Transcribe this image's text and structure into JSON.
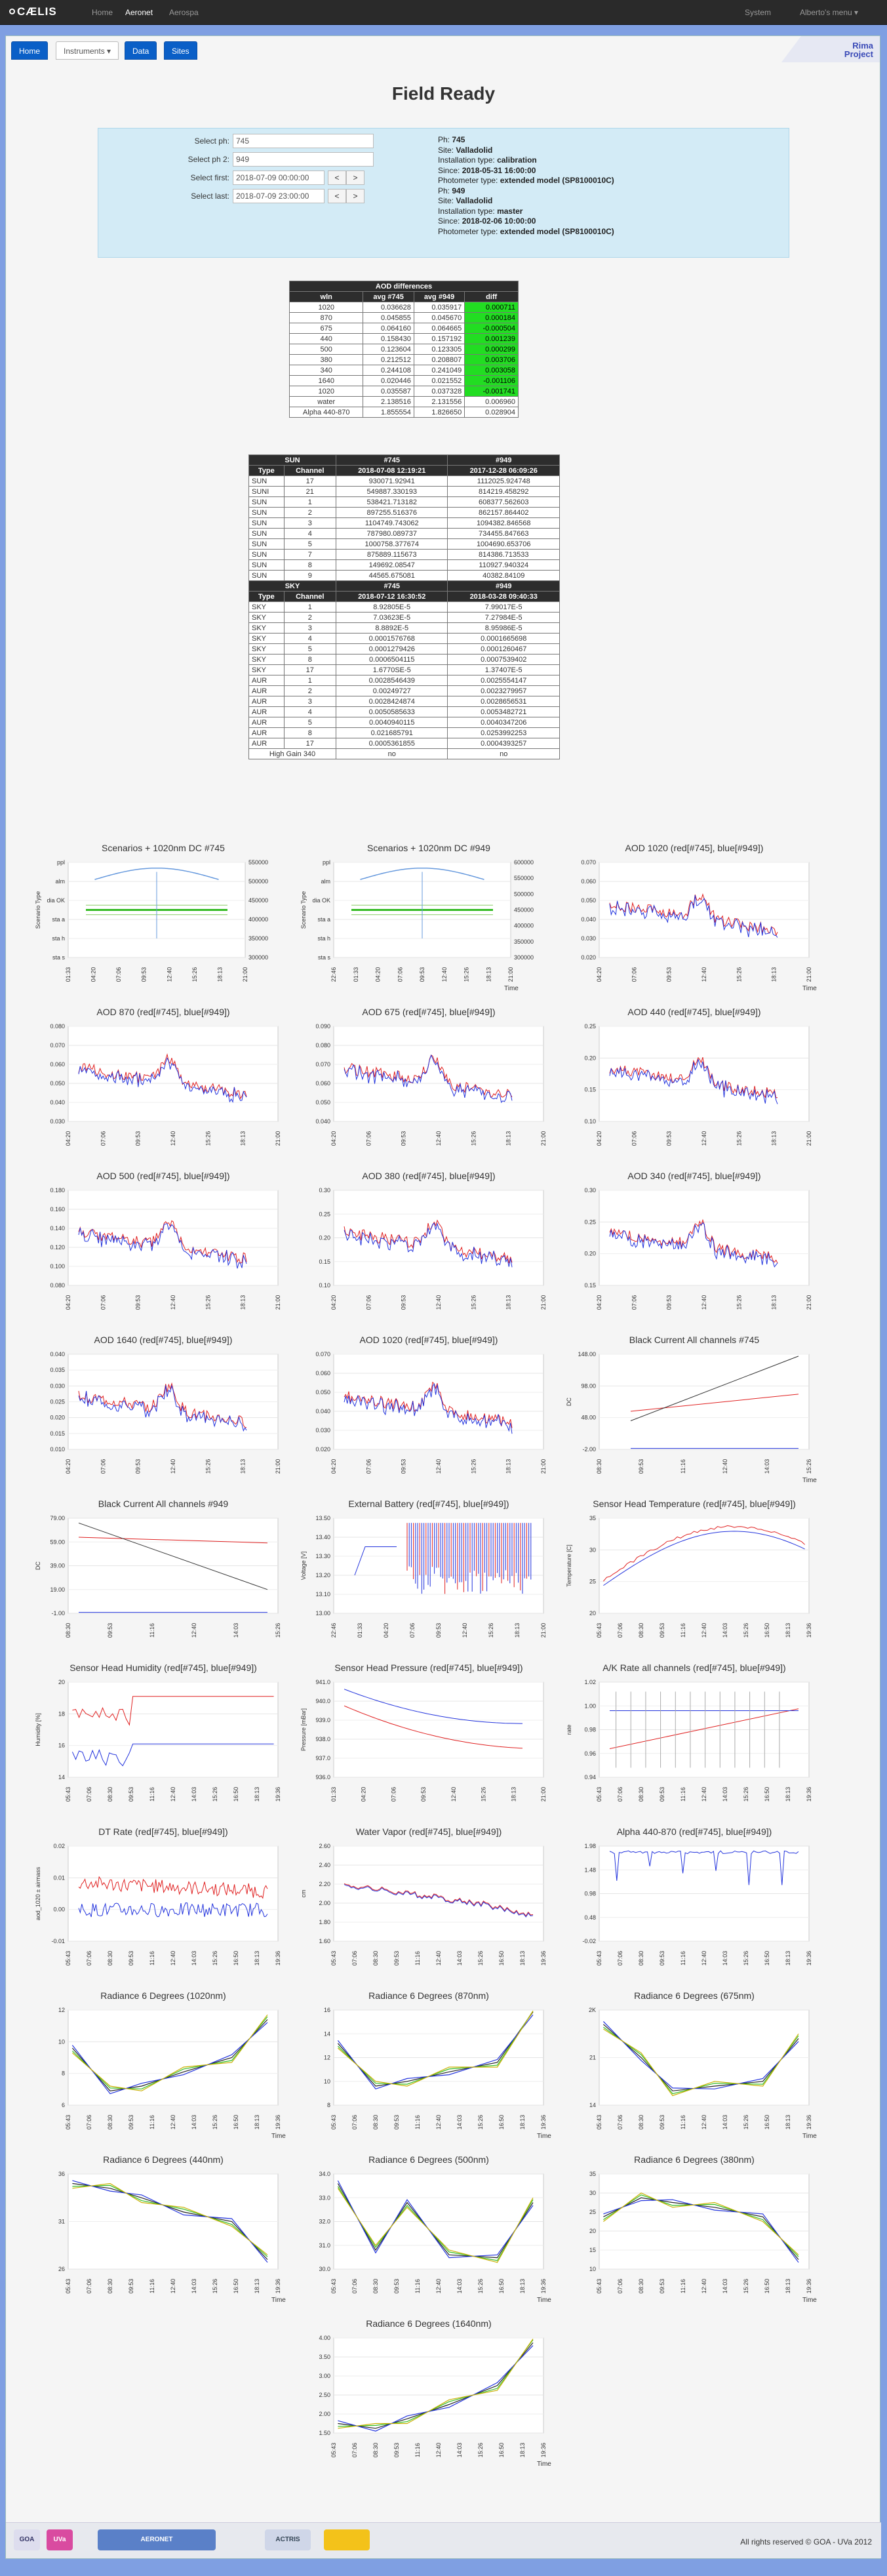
{
  "topbar": {
    "brand": "CÆLIS",
    "links": [
      "Home",
      "Aeronet",
      "Aerospa"
    ],
    "active": "Aeronet",
    "right_links": [
      "System",
      "Alberto's menu"
    ]
  },
  "tabs": [
    {
      "label": "Home",
      "active": true
    },
    {
      "label": "Instruments",
      "active": false
    },
    {
      "label": "Data",
      "active": true
    },
    {
      "label": "Sites",
      "active": true
    }
  ],
  "rima": {
    "line1": "Rima",
    "line2": "Project"
  },
  "page_title": "Field Ready",
  "form": {
    "ph_label": "Select ph:",
    "ph_value": "745",
    "ph2_label": "Select ph 2:",
    "ph2_value": "949",
    "first_label": "Select first:",
    "first_value": "2018-07-09 00:00:00",
    "last_label": "Select last:",
    "last_value": "2018-07-09 23:00:00",
    "prev": "<",
    "next": ">"
  },
  "info": [
    {
      "k": "Ph:",
      "v": "745"
    },
    {
      "k": "Site:",
      "v": "Valladolid"
    },
    {
      "k": "Installation type:",
      "v": "calibration"
    },
    {
      "k": "Since:",
      "v": "2018-05-31 16:00:00"
    },
    {
      "k": "Photometer type:",
      "v": "extended model (SP8100010C)"
    },
    {
      "k": "Ph:",
      "v": "949"
    },
    {
      "k": "Site:",
      "v": "Valladolid"
    },
    {
      "k": "Installation type:",
      "v": "master"
    },
    {
      "k": "Since:",
      "v": "2018-02-06 10:00:00"
    },
    {
      "k": "Photometer type:",
      "v": "extended model (SP8100010C)"
    }
  ],
  "aod": {
    "caption": "AOD differences",
    "headers": [
      "wln",
      "avg #745",
      "avg #949",
      "diff"
    ],
    "rows": [
      [
        "1020",
        "0.036628",
        "0.035917",
        "0.000711"
      ],
      [
        "870",
        "0.045855",
        "0.045670",
        "0.000184"
      ],
      [
        "675",
        "0.064160",
        "0.064665",
        "-0.000504"
      ],
      [
        "440",
        "0.158430",
        "0.157192",
        "0.001239"
      ],
      [
        "500",
        "0.123604",
        "0.123305",
        "0.000299"
      ],
      [
        "380",
        "0.212512",
        "0.208807",
        "0.003706"
      ],
      [
        "340",
        "0.244108",
        "0.241049",
        "0.003058"
      ],
      [
        "1640",
        "0.020446",
        "0.021552",
        "-0.001106"
      ],
      [
        "1020",
        "0.035587",
        "0.037328",
        "-0.001741"
      ],
      [
        "water",
        "2.138516",
        "2.131556",
        "0.006960"
      ],
      [
        "Alpha 440-870",
        "1.855554",
        "1.826650",
        "0.028904"
      ]
    ]
  },
  "sun": {
    "cap": [
      "SUN",
      "#745",
      "#949"
    ],
    "headers": [
      "Type",
      "Channel",
      "2018-07-08 12:19:21",
      "2017-12-28 06:09:26"
    ],
    "rows": [
      [
        "SUN",
        "17",
        "930071.92941",
        "1112025.924748"
      ],
      [
        "SUNI",
        "21",
        "549887.330193",
        "814219.458292"
      ],
      [
        "SUN",
        "1",
        "538421.713182",
        "608377.562603"
      ],
      [
        "SUN",
        "2",
        "897255.516376",
        "862157.864402"
      ],
      [
        "SUN",
        "3",
        "1104749.743062",
        "1094382.846568"
      ],
      [
        "SUN",
        "4",
        "787980.089737",
        "734455.847663"
      ],
      [
        "SUN",
        "5",
        "1000758.377674",
        "1004690.653706"
      ],
      [
        "SUN",
        "7",
        "875889.115673",
        "814386.713533"
      ],
      [
        "SUN",
        "8",
        "149692.08547",
        "110927.940324"
      ],
      [
        "SUN",
        "9",
        "44565.675081",
        "40382.84109"
      ]
    ]
  },
  "sky": {
    "cap": [
      "SKY",
      "#745",
      "#949"
    ],
    "headers": [
      "Type",
      "Channel",
      "2018-07-12 16:30:52",
      "2018-03-28 09:40:33"
    ],
    "rows": [
      [
        "SKY",
        "1",
        "8.92805E-5",
        "7.99017E-5"
      ],
      [
        "SKY",
        "2",
        "7.03623E-5",
        "7.27984E-5"
      ],
      [
        "SKY",
        "3",
        "8.8892E-5",
        "8.95986E-5"
      ],
      [
        "SKY",
        "4",
        "0.0001576768",
        "0.0001665698"
      ],
      [
        "SKY",
        "5",
        "0.0001279426",
        "0.0001260467"
      ],
      [
        "SKY",
        "8",
        "0.0006504115",
        "0.0007539402"
      ],
      [
        "SKY",
        "17",
        "1.6770SE-5",
        "1.37407E-5"
      ],
      [
        "AUR",
        "1",
        "0.0028546439",
        "0.0025554147"
      ],
      [
        "AUR",
        "2",
        "0.00249727",
        "0.0023279957"
      ],
      [
        "AUR",
        "3",
        "0.0028424874",
        "0.0028656531"
      ],
      [
        "AUR",
        "4",
        "0.0050585633",
        "0.0053482721"
      ],
      [
        "AUR",
        "5",
        "0.0040940115",
        "0.0040347206"
      ],
      [
        "AUR",
        "8",
        "0.021685791",
        "0.0253992253"
      ],
      [
        "AUR",
        "17",
        "0.0005361855",
        "0.0004393257"
      ]
    ],
    "high_gain": [
      "High Gain 340",
      "no",
      "no"
    ]
  },
  "charts": [
    {
      "title": "Scenarios + 1020nm DC #745",
      "xt": [
        "01:33",
        "04:20",
        "07:06",
        "09:53",
        "12:40",
        "15:26",
        "18:13",
        "21:00"
      ],
      "yt": [
        "sta s",
        "sta h",
        "sta a",
        "dia OK",
        "alm",
        "ppl"
      ],
      "y2": [
        "300000",
        "350000",
        "400000",
        "450000",
        "500000",
        "550000"
      ],
      "ylabel": "Scenario Type",
      "xlabel": "",
      "kind": "scen"
    },
    {
      "title": "Scenarios + 1020nm DC #949",
      "xt": [
        "22:46",
        "01:33",
        "04:20",
        "07:06",
        "09:53",
        "12:40",
        "15:26",
        "18:13",
        "21:00"
      ],
      "yt": [
        "sta s",
        "sta h",
        "sta a",
        "dia OK",
        "alm",
        "ppl"
      ],
      "y2": [
        "300000",
        "350000",
        "400000",
        "450000",
        "500000",
        "550000",
        "600000"
      ],
      "ylabel": "Scenario Type",
      "xlabel": "Time",
      "kind": "scen"
    },
    {
      "title": "AOD 1020 (red[#745], blue[#949])",
      "xt": [
        "04:20",
        "07:06",
        "09:53",
        "12:40",
        "15:26",
        "18:13",
        "21:00"
      ],
      "yt": [
        "0.020",
        "0.030",
        "0.040",
        "0.050",
        "0.060",
        "0.070"
      ],
      "xlabel": "Time",
      "kind": "aod"
    },
    {
      "title": "AOD 870 (red[#745], blue[#949])",
      "xt": [
        "04:20",
        "07:06",
        "09:53",
        "12:40",
        "15:26",
        "18:13",
        "21:00"
      ],
      "yt": [
        "0.030",
        "0.040",
        "0.050",
        "0.060",
        "0.070",
        "0.080"
      ],
      "xlabel": "",
      "kind": "aod"
    },
    {
      "title": "AOD 675 (red[#745], blue[#949])",
      "xt": [
        "04:20",
        "07:06",
        "09:53",
        "12:40",
        "15:26",
        "18:13",
        "21:00"
      ],
      "yt": [
        "0.040",
        "0.050",
        "0.060",
        "0.070",
        "0.080",
        "0.090"
      ],
      "xlabel": "",
      "kind": "aod"
    },
    {
      "title": "AOD 440 (red[#745], blue[#949])",
      "xt": [
        "04:20",
        "07:06",
        "09:53",
        "12:40",
        "15:26",
        "18:13",
        "21:00"
      ],
      "yt": [
        "0.10",
        "0.15",
        "0.20",
        "0.25"
      ],
      "xlabel": "",
      "kind": "aod"
    },
    {
      "title": "AOD 500 (red[#745], blue[#949])",
      "xt": [
        "04:20",
        "07:06",
        "09:53",
        "12:40",
        "15:26",
        "18:13",
        "21:00"
      ],
      "yt": [
        "0.080",
        "0.100",
        "0.120",
        "0.140",
        "0.160",
        "0.180"
      ],
      "xlabel": "",
      "kind": "aod"
    },
    {
      "title": "AOD 380 (red[#745], blue[#949])",
      "xt": [
        "04:20",
        "07:06",
        "09:53",
        "12:40",
        "15:26",
        "18:13",
        "21:00"
      ],
      "yt": [
        "0.10",
        "0.15",
        "0.20",
        "0.25",
        "0.30"
      ],
      "xlabel": "",
      "kind": "aod"
    },
    {
      "title": "AOD 340 (red[#745], blue[#949])",
      "xt": [
        "04:20",
        "07:06",
        "09:53",
        "12:40",
        "15:26",
        "18:13",
        "21:00"
      ],
      "yt": [
        "0.15",
        "0.20",
        "0.25",
        "0.30"
      ],
      "xlabel": "",
      "kind": "aod"
    },
    {
      "title": "AOD 1640 (red[#745], blue[#949])",
      "xt": [
        "04:20",
        "07:06",
        "09:53",
        "12:40",
        "15:26",
        "18:13",
        "21:00"
      ],
      "yt": [
        "0.010",
        "0.015",
        "0.020",
        "0.025",
        "0.030",
        "0.035",
        "0.040"
      ],
      "xlabel": "",
      "kind": "aod"
    },
    {
      "title": "AOD 1020 (red[#745], blue[#949])",
      "xt": [
        "04:20",
        "07:06",
        "09:53",
        "12:40",
        "15:26",
        "18:13",
        "21:00"
      ],
      "yt": [
        "0.020",
        "0.030",
        "0.040",
        "0.050",
        "0.060",
        "0.070"
      ],
      "xlabel": "",
      "kind": "aod"
    },
    {
      "title": "Black Current All channels #745",
      "xt": [
        "08:30",
        "09:53",
        "11:16",
        "12:40",
        "14:03",
        "15:26"
      ],
      "yt": [
        "-2.00",
        "48.00",
        "98.00",
        "148.00"
      ],
      "ylabel": "DC",
      "xlabel": "Time",
      "kind": "dc745"
    },
    {
      "title": "Black Current All channels #949",
      "xt": [
        "08:30",
        "09:53",
        "11:16",
        "12:40",
        "14:03",
        "15:26"
      ],
      "yt": [
        "-1.00",
        "19.00",
        "39.00",
        "59.00",
        "79.00"
      ],
      "ylabel": "DC",
      "xlabel": "",
      "kind": "dc949"
    },
    {
      "title": "External Battery (red[#745], blue[#949])",
      "xt": [
        "22:46",
        "01:33",
        "04:20",
        "07:06",
        "09:53",
        "12:40",
        "15:26",
        "18:13",
        "21:00"
      ],
      "yt": [
        "13.00",
        "13.10",
        "13.20",
        "13.30",
        "13.40",
        "13.50"
      ],
      "ylabel": "Voltage [V]",
      "xlabel": "",
      "kind": "batt"
    },
    {
      "title": "Sensor Head Temperature (red[#745], blue[#949])",
      "xt": [
        "05:43",
        "07:06",
        "08:30",
        "09:53",
        "11:16",
        "12:40",
        "14:03",
        "15:26",
        "16:50",
        "18:13",
        "19:36"
      ],
      "yt": [
        "20",
        "25",
        "30",
        "35"
      ],
      "ylabel": "Temperature [C]",
      "xlabel": "",
      "kind": "temp"
    },
    {
      "title": "Sensor Head Humidity (red[#745], blue[#949])",
      "xt": [
        "05:43",
        "07:06",
        "08:30",
        "09:53",
        "11:16",
        "12:40",
        "14:03",
        "15:26",
        "16:50",
        "18:13",
        "19:36"
      ],
      "yt": [
        "14",
        "16",
        "18",
        "20"
      ],
      "ylabel": "Humidity [%]",
      "xlabel": "",
      "kind": "hum"
    },
    {
      "title": "Sensor Head Pressure (red[#745], blue[#949])",
      "xt": [
        "01:33",
        "04:20",
        "07:06",
        "09:53",
        "12:40",
        "15:26",
        "18:13",
        "21:00"
      ],
      "yt": [
        "936.0",
        "937.0",
        "938.0",
        "939.0",
        "940.0",
        "941.0"
      ],
      "ylabel": "Pressure [mBar]",
      "xlabel": "",
      "kind": "pres"
    },
    {
      "title": "A/K Rate all channels (red[#745], blue[#949])",
      "xt": [
        "05:43",
        "07:06",
        "08:30",
        "09:53",
        "11:16",
        "12:40",
        "14:03",
        "15:26",
        "16:50",
        "18:13",
        "19:36"
      ],
      "yt": [
        "0.94",
        "0.96",
        "0.98",
        "1.00",
        "1.02"
      ],
      "ylabel": "rate",
      "xlabel": "",
      "kind": "ak"
    },
    {
      "title": "DT Rate (red[#745], blue[#949])",
      "xt": [
        "05:43",
        "07:06",
        "08:30",
        "09:53",
        "11:16",
        "12:40",
        "14:03",
        "15:26",
        "16:50",
        "18:13",
        "19:36"
      ],
      "yt": [
        "-0.01",
        "0.00",
        "0.01",
        "0.02"
      ],
      "ylabel": "aod_1020 ± airmass",
      "xlabel": "",
      "kind": "dt"
    },
    {
      "title": "Water Vapor (red[#745], blue[#949])",
      "xt": [
        "05:43",
        "07:06",
        "08:30",
        "09:53",
        "11:16",
        "12:40",
        "14:03",
        "15:26",
        "16:50",
        "18:13",
        "19:36"
      ],
      "yt": [
        "1.60",
        "1.80",
        "2.00",
        "2.20",
        "2.40",
        "2.60"
      ],
      "ylabel": "cm",
      "xlabel": "",
      "kind": "wv"
    },
    {
      "title": "Alpha 440-870 (red[#745], blue[#949])",
      "xt": [
        "05:43",
        "07:06",
        "08:30",
        "09:53",
        "11:16",
        "12:40",
        "14:03",
        "15:26",
        "16:50",
        "18:13",
        "19:36"
      ],
      "yt": [
        "-0.02",
        "0.48",
        "0.98",
        "1.48",
        "1.98"
      ],
      "ylabel": "",
      "xlabel": "",
      "kind": "alpha"
    },
    {
      "title": "Radiance 6 Degrees (1020nm)",
      "xt": [
        "05:43",
        "07:06",
        "08:30",
        "09:53",
        "11:16",
        "12:40",
        "14:03",
        "15:26",
        "16:50",
        "18:13",
        "19:36"
      ],
      "yt": [
        "6",
        "8",
        "10",
        "12"
      ],
      "xlabel": "Time",
      "kind": "rad1"
    },
    {
      "title": "Radiance 6 Degrees (870nm)",
      "xt": [
        "05:43",
        "07:06",
        "08:30",
        "09:53",
        "11:16",
        "12:40",
        "14:03",
        "15:26",
        "16:50",
        "18:13",
        "19:36"
      ],
      "yt": [
        "8",
        "10",
        "12",
        "14",
        "16"
      ],
      "xlabel": "Time",
      "kind": "rad2"
    },
    {
      "title": "Radiance 6 Degrees (675nm)",
      "xt": [
        "05:43",
        "07:06",
        "08:30",
        "09:53",
        "11:16",
        "12:40",
        "14:03",
        "15:26",
        "16:50",
        "18:13",
        "19:36"
      ],
      "yt": [
        "14",
        "21",
        "2K"
      ],
      "xlabel": "Time",
      "kind": "rad3"
    },
    {
      "title": "Radiance 6 Degrees (440nm)",
      "xt": [
        "05:43",
        "07:06",
        "08:30",
        "09:53",
        "11:16",
        "12:40",
        "14:03",
        "15:26",
        "16:50",
        "18:13",
        "19:36"
      ],
      "yt": [
        "26",
        "31",
        "36"
      ],
      "xlabel": "Time",
      "kind": "rad4"
    },
    {
      "title": "Radiance 6 Degrees (500nm)",
      "xt": [
        "05:43",
        "07:06",
        "08:30",
        "09:53",
        "11:16",
        "12:40",
        "14:03",
        "15:26",
        "16:50",
        "18:13",
        "19:36"
      ],
      "yt": [
        "30.0",
        "31.0",
        "32.0",
        "33.0",
        "34.0"
      ],
      "xlabel": "Time",
      "kind": "rad5"
    },
    {
      "title": "Radiance 6 Degrees (380nm)",
      "xt": [
        "05:43",
        "07:06",
        "08:30",
        "09:53",
        "11:16",
        "12:40",
        "14:03",
        "15:26",
        "16:50",
        "18:13",
        "19:36"
      ],
      "yt": [
        "10",
        "15",
        "20",
        "25",
        "30",
        "35"
      ],
      "xlabel": "Time",
      "kind": "rad6"
    },
    {
      "title": "Radiance 6 Degrees (1640nm)",
      "xt": [
        "05:43",
        "07:06",
        "08:30",
        "09:53",
        "11:16",
        "12:40",
        "14:03",
        "15:26",
        "16:50",
        "18:13",
        "19:36"
      ],
      "yt": [
        "1.50",
        "2.00",
        "2.50",
        "3.00",
        "3.50",
        "4.00"
      ],
      "xlabel": "Time",
      "kind": "rad7"
    }
  ],
  "colors": {
    "red": "#e02020",
    "blue": "#2233dd",
    "green": "#33bb22",
    "brand_blue": "#0a5fc7"
  },
  "footer": {
    "logos": [
      "GOA",
      "UVa",
      "AERONET",
      "ACTRIS"
    ],
    "copyright": "All rights reserved © GOA - UVa 2012"
  }
}
